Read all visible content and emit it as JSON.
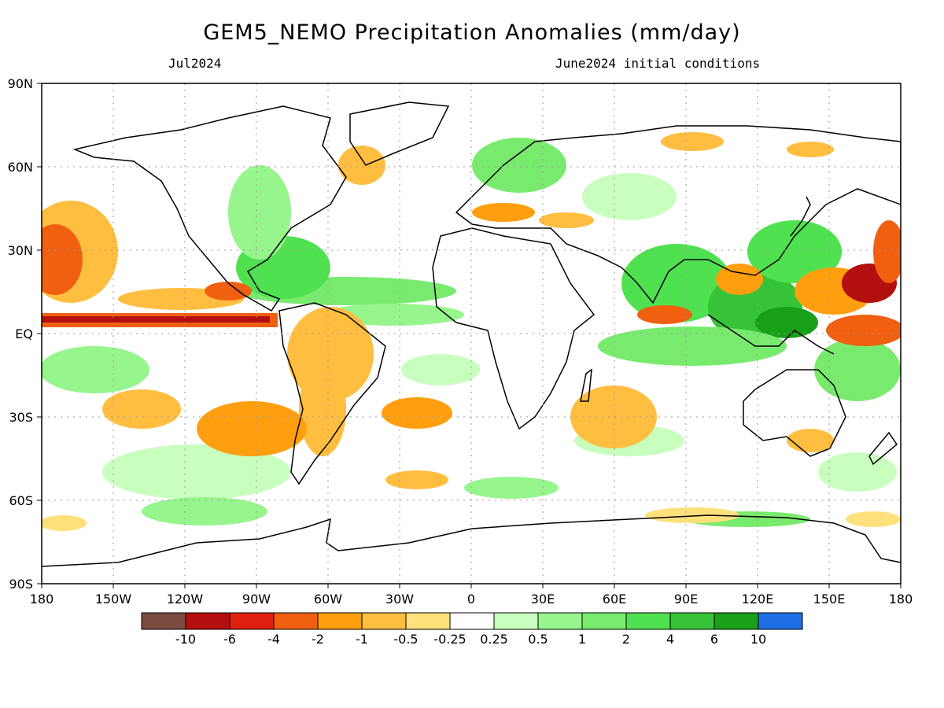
{
  "header": {
    "title": "GEM5_NEMO Precipitation Anomalies (mm/day)",
    "valid_month": "Jul2024",
    "init_label": "June2024 initial conditions"
  },
  "axes": {
    "lat_labels": [
      "90N",
      "60N",
      "30N",
      "EQ",
      "30S",
      "60S",
      "90S"
    ],
    "lon_labels": [
      "180",
      "150W",
      "120W",
      "90W",
      "60W",
      "30W",
      "0",
      "30E",
      "60E",
      "90E",
      "120E",
      "150E",
      "180"
    ]
  },
  "colorbar": {
    "colors": [
      "#7a4b3f",
      "#b40f0f",
      "#e0200f",
      "#f06010",
      "#ff9f10",
      "#ffbe40",
      "#ffe07a",
      "#ffffff",
      "#c8ffbe",
      "#96f58c",
      "#78eb6e",
      "#50e150",
      "#37c337",
      "#18a018",
      "#1e6ee6"
    ],
    "labels": [
      "-10",
      "-6",
      "-4",
      "-2",
      "-1",
      "-0.5",
      "-0.25",
      "0.25",
      "0.5",
      "1",
      "2",
      "4",
      "6",
      "10"
    ]
  },
  "map_colors": {
    "ocean": "#ffffff",
    "land_outline": "#000000",
    "grid": "#9a9a9a"
  }
}
